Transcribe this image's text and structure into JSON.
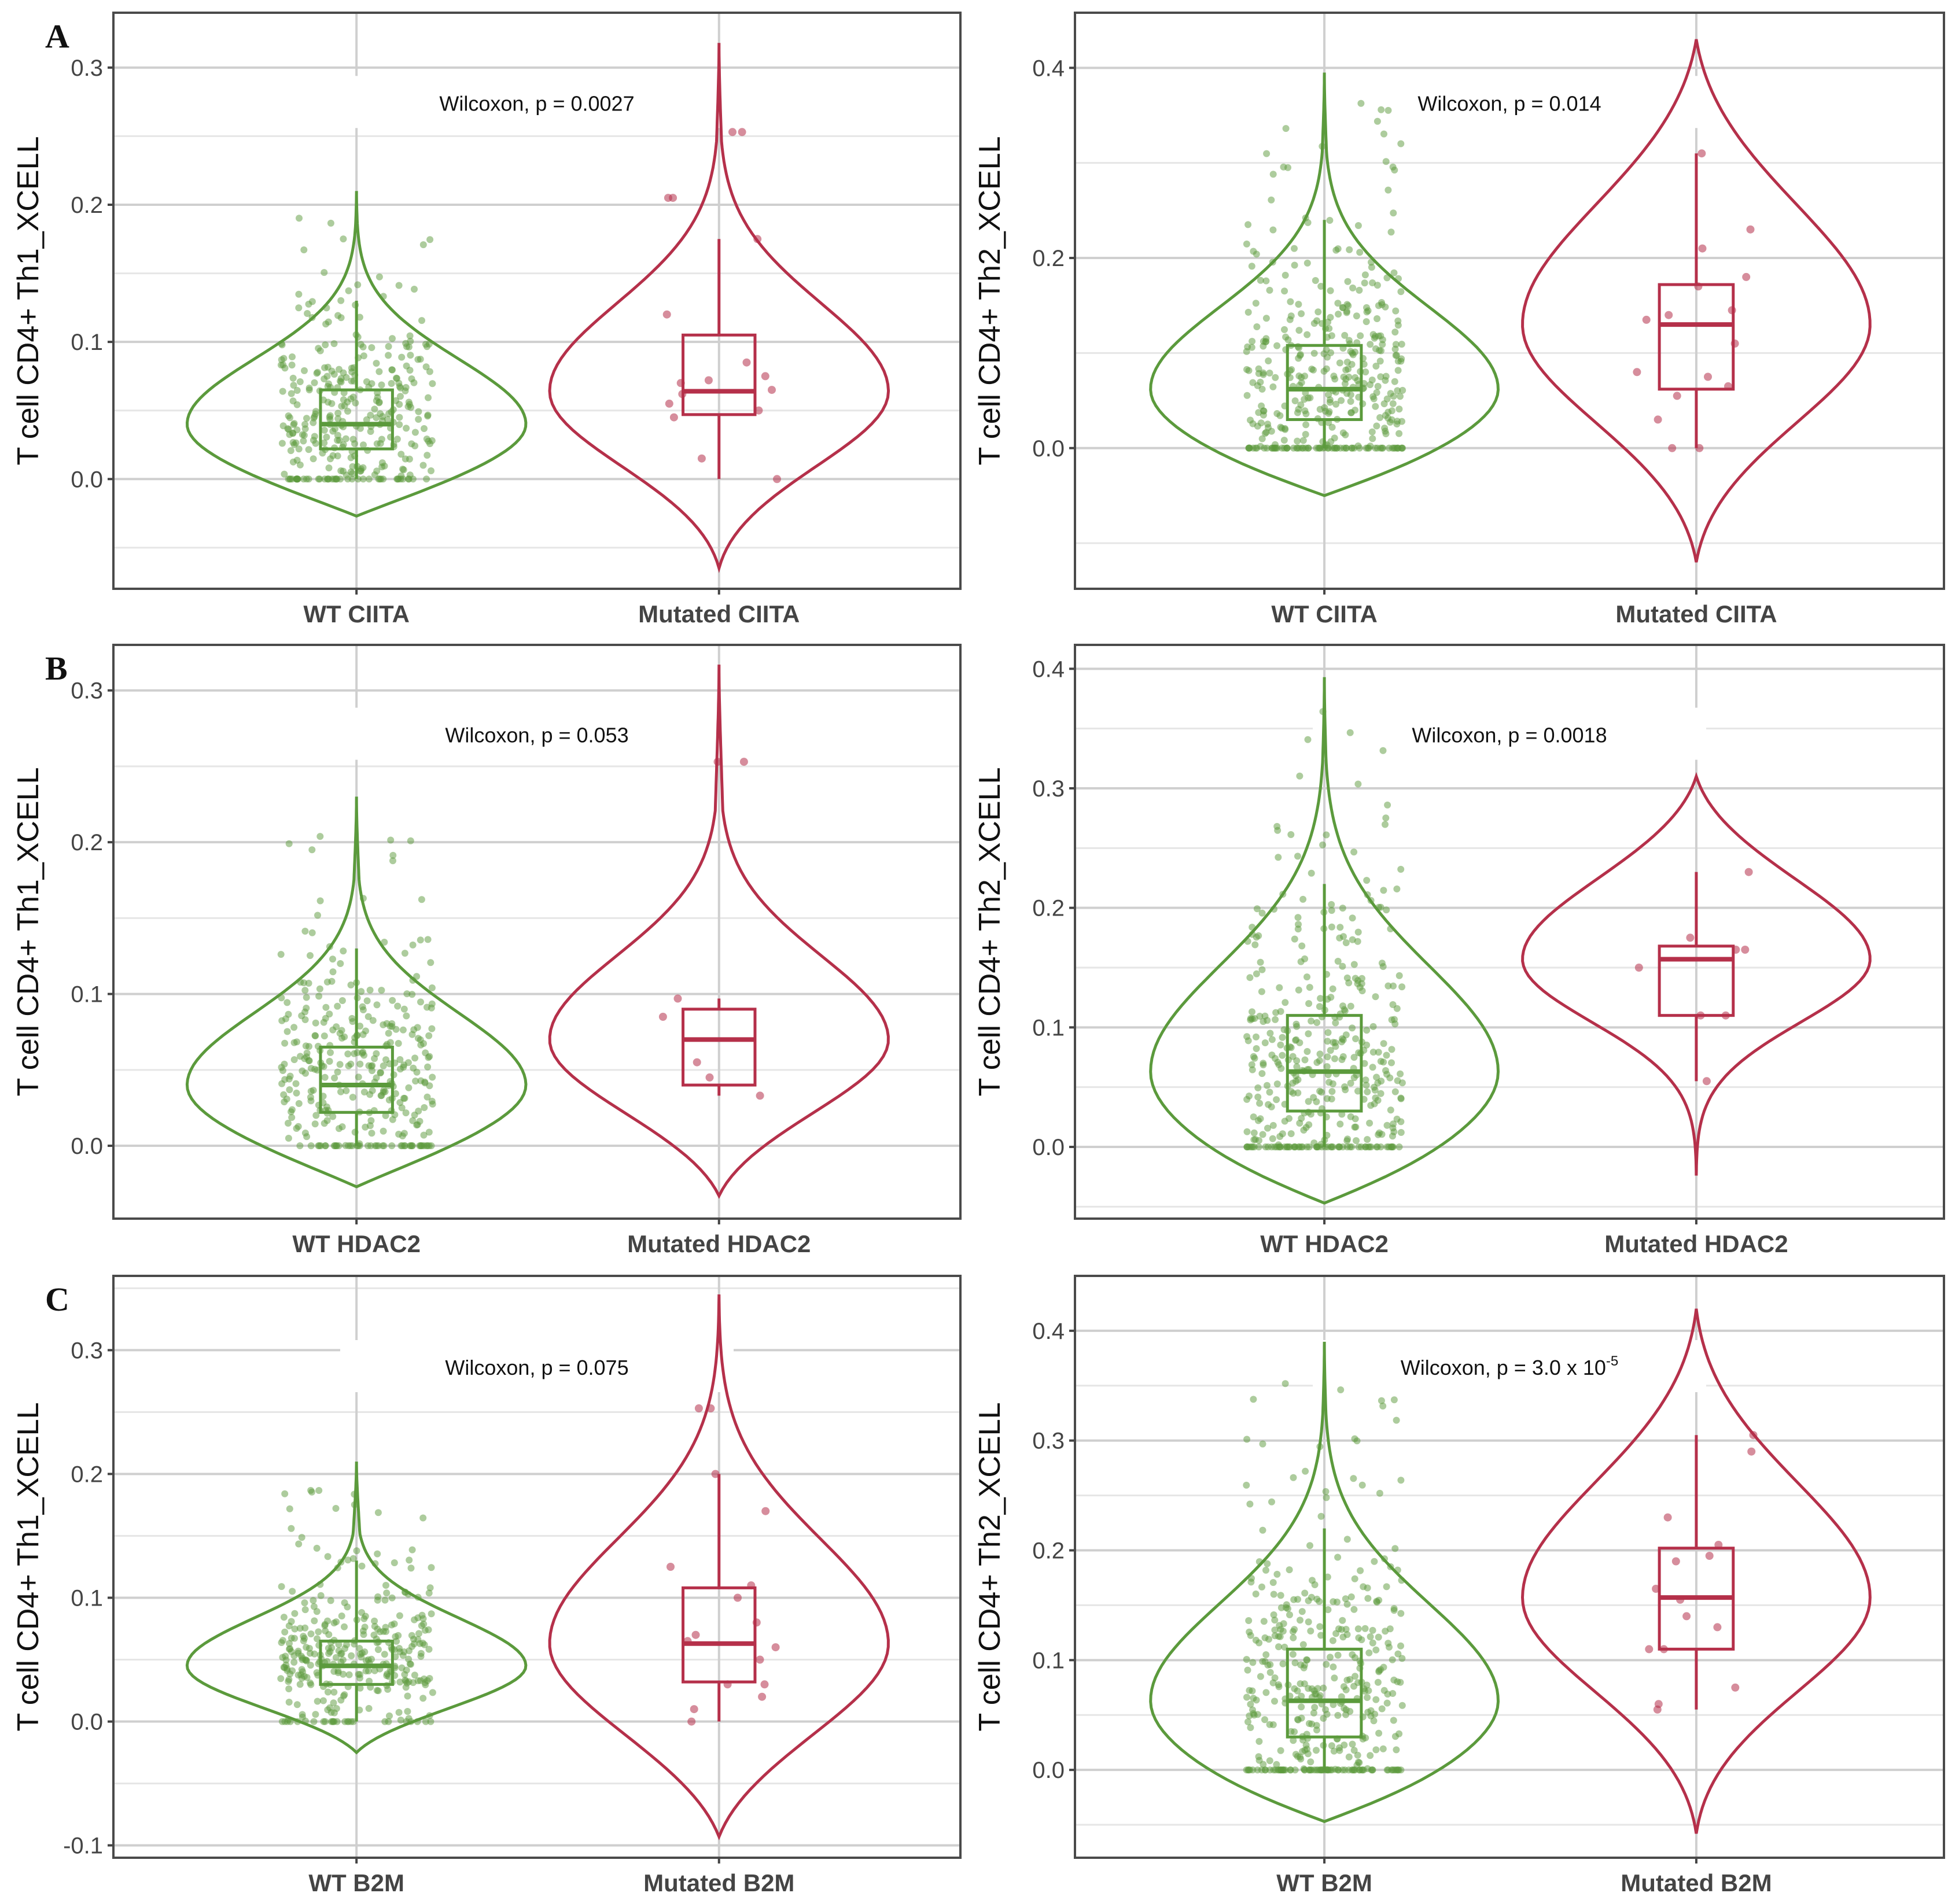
{
  "colors": {
    "wt": "#5b9a3c",
    "mut": "#b5304a"
  },
  "chart_data": [
    {
      "type": "violin",
      "panel_letter": "A",
      "ylabel": "T cell CD4+ Th1_XCELL",
      "categories": [
        "WT CIITA",
        "Mutated CIITA"
      ],
      "ylim": [
        -0.08,
        0.34
      ],
      "yticks": [
        0.0,
        0.1,
        0.2,
        0.3
      ],
      "ytick_labels": [
        "0.0",
        "0.1",
        "0.2",
        "0.3"
      ],
      "annotation": {
        "method": "Wilcoxon",
        "text": "Wilcoxon, p = 0.0027"
      },
      "series": [
        {
          "name": "WT CIITA",
          "violin": {
            "min": -0.027,
            "max": 0.21
          },
          "box": {
            "q1": 0.022,
            "median": 0.04,
            "q3": 0.065,
            "whisker_low": 0.0,
            "whisker_high": 0.13
          },
          "n_points": 330
        },
        {
          "name": "Mutated CIITA",
          "violin": {
            "min": -0.065,
            "max": 0.318
          },
          "box": {
            "q1": 0.047,
            "median": 0.064,
            "q3": 0.105,
            "whisker_low": 0.0,
            "whisker_high": 0.175
          },
          "points": [
            0.0,
            0.015,
            0.045,
            0.05,
            0.055,
            0.062,
            0.065,
            0.07,
            0.072,
            0.075,
            0.085,
            0.12,
            0.175,
            0.205,
            0.205,
            0.253,
            0.253
          ]
        }
      ]
    },
    {
      "type": "violin",
      "panel_letter": "",
      "ylabel": "T cell CD4+ Th2_XCELL",
      "categories": [
        "WT CIITA",
        "Mutated CIITA"
      ],
      "ylim": [
        -0.148,
        0.458
      ],
      "yticks": [
        0.0,
        0.2,
        0.4
      ],
      "ytick_labels": [
        "0.0",
        "0.2",
        "0.4"
      ],
      "annotation": {
        "method": "Wilcoxon",
        "text": "Wilcoxon, p = 0.014"
      },
      "series": [
        {
          "name": "WT CIITA",
          "violin": {
            "min": -0.05,
            "max": 0.395
          },
          "box": {
            "q1": 0.03,
            "median": 0.062,
            "q3": 0.108,
            "whisker_low": 0.0,
            "whisker_high": 0.24
          },
          "n_points": 390
        },
        {
          "name": "Mutated CIITA",
          "violin": {
            "min": -0.12,
            "max": 0.43
          },
          "box": {
            "q1": 0.062,
            "median": 0.13,
            "q3": 0.172,
            "whisker_low": 0.0,
            "whisker_high": 0.31
          },
          "points": [
            0.0,
            0.0,
            0.03,
            0.055,
            0.065,
            0.075,
            0.08,
            0.11,
            0.135,
            0.14,
            0.145,
            0.17,
            0.18,
            0.21,
            0.23,
            0.31
          ]
        }
      ]
    },
    {
      "type": "violin",
      "panel_letter": "B",
      "ylabel": "T cell CD4+ Th1_XCELL",
      "categories": [
        "WT HDAC2",
        "Mutated HDAC2"
      ],
      "ylim": [
        -0.048,
        0.33
      ],
      "yticks": [
        0.0,
        0.1,
        0.2,
        0.3
      ],
      "ytick_labels": [
        "0.0",
        "0.1",
        "0.2",
        "0.3"
      ],
      "annotation": {
        "method": "Wilcoxon",
        "text": "Wilcoxon, p = 0.053"
      },
      "series": [
        {
          "name": "WT HDAC2",
          "violin": {
            "min": -0.027,
            "max": 0.23
          },
          "box": {
            "q1": 0.022,
            "median": 0.04,
            "q3": 0.065,
            "whisker_low": 0.0,
            "whisker_high": 0.13
          },
          "n_points": 330
        },
        {
          "name": "Mutated HDAC2",
          "violin": {
            "min": -0.033,
            "max": 0.317
          },
          "box": {
            "q1": 0.04,
            "median": 0.07,
            "q3": 0.09,
            "whisker_low": 0.033,
            "whisker_high": 0.097
          },
          "points": [
            0.033,
            0.045,
            0.055,
            0.085,
            0.097,
            0.253,
            0.253
          ]
        }
      ]
    },
    {
      "type": "violin",
      "panel_letter": "",
      "ylabel": "T cell CD4+ Th2_XCELL",
      "categories": [
        "WT HDAC2",
        "Mutated HDAC2"
      ],
      "ylim": [
        -0.06,
        0.42
      ],
      "yticks": [
        0.0,
        0.1,
        0.2,
        0.3,
        0.4
      ],
      "ytick_labels": [
        "0.0",
        "0.1",
        "0.2",
        "0.3",
        "0.4"
      ],
      "annotation": {
        "method": "Wilcoxon",
        "text": "Wilcoxon, p = 0.0018"
      },
      "series": [
        {
          "name": "WT HDAC2",
          "violin": {
            "min": -0.047,
            "max": 0.393
          },
          "box": {
            "q1": 0.03,
            "median": 0.063,
            "q3": 0.11,
            "whisker_low": 0.0,
            "whisker_high": 0.22
          },
          "n_points": 390
        },
        {
          "name": "Mutated HDAC2",
          "violin": {
            "min": -0.024,
            "max": 0.31
          },
          "box": {
            "q1": 0.11,
            "median": 0.157,
            "q3": 0.168,
            "whisker_low": 0.055,
            "whisker_high": 0.23
          },
          "points": [
            0.055,
            0.11,
            0.11,
            0.15,
            0.165,
            0.165,
            0.175,
            0.23
          ]
        }
      ]
    },
    {
      "type": "violin",
      "panel_letter": "C",
      "ylabel": "T cell CD4+ Th1_XCELL",
      "categories": [
        "WT B2M",
        "Mutated B2M"
      ],
      "ylim": [
        -0.11,
        0.36
      ],
      "yticks": [
        -0.1,
        0.0,
        0.1,
        0.2,
        0.3
      ],
      "ytick_labels": [
        "-0.1",
        "0.0",
        "0.1",
        "0.2",
        "0.3"
      ],
      "annotation": {
        "method": "Wilcoxon",
        "text": "Wilcoxon, p = 0.075"
      },
      "series": [
        {
          "name": "WT B2M",
          "violin": {
            "min": -0.025,
            "max": 0.21
          },
          "box": {
            "q1": 0.03,
            "median": 0.045,
            "q3": 0.065,
            "whisker_low": 0.0,
            "whisker_high": 0.13
          },
          "n_points": 330
        },
        {
          "name": "Mutated B2M",
          "violin": {
            "min": -0.093,
            "max": 0.345
          },
          "box": {
            "q1": 0.032,
            "median": 0.063,
            "q3": 0.108,
            "whisker_low": 0.0,
            "whisker_high": 0.2
          },
          "points": [
            0.0,
            0.01,
            0.02,
            0.03,
            0.03,
            0.05,
            0.06,
            0.065,
            0.07,
            0.08,
            0.1,
            0.11,
            0.125,
            0.17,
            0.2,
            0.253,
            0.253
          ]
        }
      ]
    },
    {
      "type": "violin",
      "panel_letter": "",
      "ylabel": "T cell CD4+ Th2_XCELL",
      "categories": [
        "WT B2M",
        "Mutated B2M"
      ],
      "ylim": [
        -0.08,
        0.45
      ],
      "yticks": [
        0.0,
        0.1,
        0.2,
        0.3,
        0.4
      ],
      "ytick_labels": [
        "0.0",
        "0.1",
        "0.2",
        "0.3",
        "0.4"
      ],
      "annotation": {
        "method": "Wilcoxon",
        "text": "Wilcoxon, p = 3.0 x 10",
        "superscript": "-5"
      },
      "series": [
        {
          "name": "WT B2M",
          "violin": {
            "min": -0.047,
            "max": 0.39
          },
          "box": {
            "q1": 0.03,
            "median": 0.063,
            "q3": 0.11,
            "whisker_low": 0.0,
            "whisker_high": 0.22
          },
          "n_points": 390
        },
        {
          "name": "Mutated B2M",
          "violin": {
            "min": -0.058,
            "max": 0.42
          },
          "box": {
            "q1": 0.11,
            "median": 0.157,
            "q3": 0.202,
            "whisker_low": 0.055,
            "whisker_high": 0.305
          },
          "points": [
            0.055,
            0.06,
            0.075,
            0.11,
            0.11,
            0.13,
            0.14,
            0.155,
            0.165,
            0.19,
            0.195,
            0.205,
            0.23,
            0.29,
            0.305
          ]
        }
      ]
    }
  ]
}
